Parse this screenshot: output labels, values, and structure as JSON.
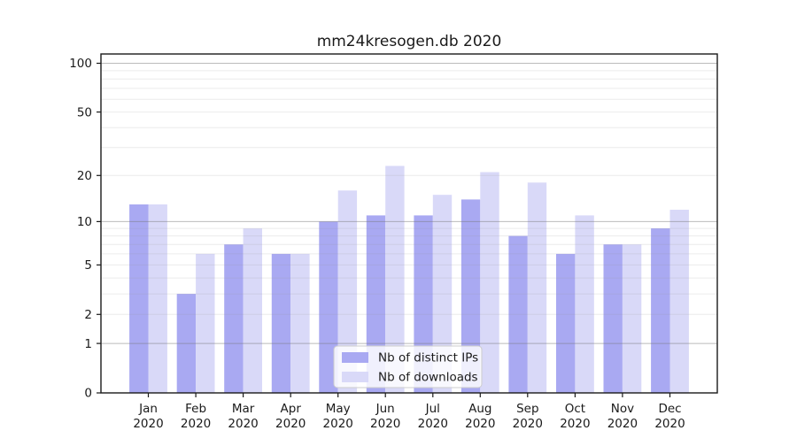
{
  "title": "mm24kresogen.db 2020",
  "chart_data": {
    "type": "bar",
    "title": "mm24kresogen.db 2020",
    "categories": [
      "Jan",
      "Feb",
      "Mar",
      "Apr",
      "May",
      "Jun",
      "Jul",
      "Aug",
      "Sep",
      "Oct",
      "Nov",
      "Dec"
    ],
    "category_year": "2020",
    "series": [
      {
        "name": "Nb of distinct IPs",
        "color": "#a9a9f2",
        "values": [
          13,
          3,
          7,
          6,
          10,
          11,
          11,
          14,
          8,
          6,
          7,
          9
        ]
      },
      {
        "name": "Nb of downloads",
        "color": "#d9d9f8",
        "values": [
          13,
          6,
          9,
          6,
          16,
          23,
          15,
          21,
          18,
          11,
          7,
          12
        ]
      }
    ],
    "xlabel": "",
    "ylabel": "",
    "yscale": "log1p",
    "yticks": [
      0,
      1,
      2,
      5,
      10,
      20,
      50,
      100
    ],
    "ylim": [
      0,
      114
    ],
    "grid": "on",
    "legend_position": "lower-center-inside"
  }
}
